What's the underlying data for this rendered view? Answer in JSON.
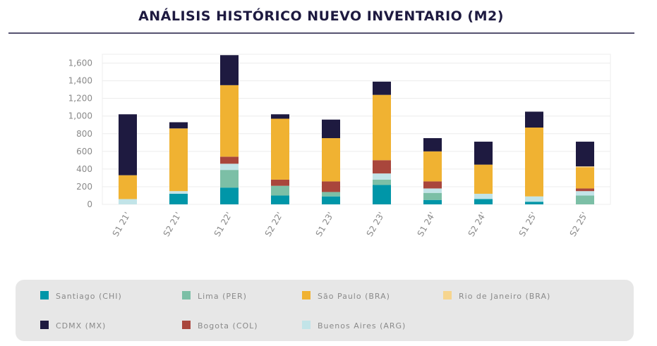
{
  "chart_data": {
    "type": "stacked_bar",
    "title": "ANÁLISIS HISTÓRICO NUEVO INVENTARIO (M2)",
    "categories": [
      "S1 21'",
      "S2 21'",
      "S1 22'",
      "S2 22'",
      "S1 23'",
      "S2 23'",
      "S1 24'",
      "S2 24'",
      "S1 25'",
      "S2 25'"
    ],
    "series": [
      {
        "name": "Santiago (CHI)",
        "color": "#0096a8",
        "values": [
          0,
          120,
          190,
          100,
          90,
          220,
          50,
          60,
          30,
          0
        ]
      },
      {
        "name": "Lima (PER)",
        "color": "#7cbfa6",
        "values": [
          0,
          0,
          200,
          110,
          50,
          60,
          80,
          0,
          0,
          100
        ]
      },
      {
        "name": "São Paulo (BRA)",
        "color": "#f0b232",
        "values": [
          270,
          710,
          810,
          690,
          490,
          740,
          340,
          330,
          780,
          240
        ]
      },
      {
        "name": "Rio de Janeiro (BRA)",
        "color": "#f6d58f",
        "values": [
          0,
          0,
          0,
          0,
          0,
          0,
          0,
          0,
          0,
          10
        ]
      },
      {
        "name": "CDMX (MX)",
        "color": "#1e1a40",
        "values": [
          690,
          70,
          340,
          50,
          210,
          150,
          150,
          260,
          180,
          280
        ]
      },
      {
        "name": "Bogota (COL)",
        "color": "#a9463c",
        "values": [
          0,
          0,
          80,
          70,
          120,
          150,
          80,
          0,
          0,
          30
        ]
      },
      {
        "name": "Buenos Aires (ARG)",
        "color": "#c2e4e8",
        "values": [
          60,
          30,
          70,
          0,
          0,
          70,
          50,
          60,
          60,
          50
        ]
      }
    ],
    "ylim": [
      0,
      1700
    ],
    "yticks": [
      0,
      200,
      400,
      600,
      800,
      {
        "value": 1000,
        "label": "1,000"
      },
      {
        "value": 1200,
        "label": "1,200"
      },
      {
        "value": 1400,
        "label": "1,400"
      },
      {
        "value": 1600,
        "label": "1,600"
      }
    ],
    "grid": true
  }
}
